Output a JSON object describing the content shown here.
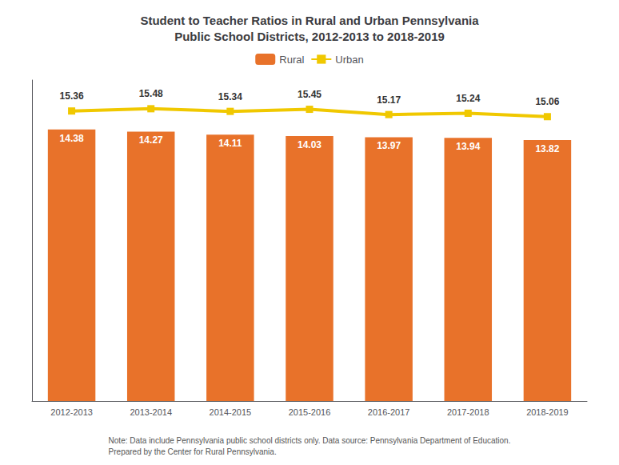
{
  "chart_data": {
    "type": "bar",
    "title": "Student to Teacher Ratios in Rural and Urban Pennsylvania\nPublic School Districts, 2012-2013 to 2018-2019",
    "categories": [
      "2012-2013",
      "2013-2014",
      "2014-2015",
      "2015-2016",
      "2016-2017",
      "2017-2018",
      "2018-2019"
    ],
    "series": [
      {
        "name": "Rural",
        "type": "bar",
        "color": "#E8722A",
        "values": [
          14.38,
          14.27,
          14.11,
          14.03,
          13.97,
          13.94,
          13.82
        ]
      },
      {
        "name": "Urban",
        "type": "line",
        "color": "#F0C800",
        "marker": "square",
        "values": [
          15.36,
          15.48,
          15.34,
          15.45,
          15.17,
          15.24,
          15.06
        ]
      }
    ],
    "ylim": [
      0,
      17
    ],
    "tick_labels": "x",
    "grid": false,
    "legend": "top",
    "data_labels": true,
    "annotations": [
      "Note: Data include Pennsylvania public school districts only. Data source: Pennsylvania Department of Education.\nPrepared by the Center for Rural Pennsylvania."
    ]
  }
}
